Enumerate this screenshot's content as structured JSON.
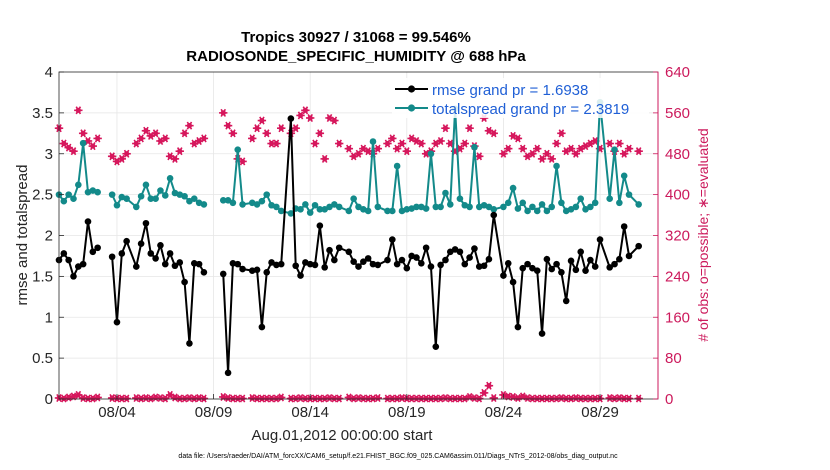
{
  "chart_data": {
    "type": "line",
    "title": "Tropics 30927 / 31068 = 99.546%",
    "subtitle": "RADIOSONDE_SPECIFIC_HUMIDITY @ 688 hPa",
    "xlabel": "Aug.01,2012 00:00:00 start",
    "ylabel": "rmse and totalspread",
    "ylabel_right": "# of obs: o=possible; ∗=evaluated",
    "x_tick_labels": [
      "08/04",
      "08/09",
      "08/14",
      "08/19",
      "08/24",
      "08/29"
    ],
    "x_tick_positions": [
      4,
      9,
      14,
      19,
      24,
      29
    ],
    "xlim": [
      1,
      32
    ],
    "ylim": [
      0,
      4
    ],
    "y_ticks": [
      "0",
      "0.5",
      "1",
      "1.5",
      "2",
      "2.5",
      "3",
      "3.5",
      "4"
    ],
    "ylim_right": [
      0,
      640
    ],
    "y_ticks_right": [
      "0",
      "80",
      "160",
      "240",
      "320",
      "400",
      "480",
      "560",
      "640"
    ],
    "grid": true,
    "legend_position": "top-right",
    "colors": {
      "rmse": "#000000",
      "spread": "#138a8a",
      "obs": "#d6175c",
      "legend_text": "#1f5fd6"
    },
    "series": [
      {
        "name": "rmse",
        "legend": "rmse grand pr = 1.6938",
        "x": [
          1.0,
          1.25,
          1.5,
          1.75,
          2.0,
          2.25,
          2.5,
          2.75,
          3.0,
          3.75,
          4.0,
          4.25,
          4.5,
          5.0,
          5.25,
          5.5,
          5.75,
          6.0,
          6.25,
          6.5,
          6.75,
          7.0,
          7.25,
          7.5,
          7.75,
          8.0,
          8.25,
          8.5,
          9.5,
          9.75,
          10.0,
          10.25,
          10.5,
          11.0,
          11.25,
          11.5,
          11.75,
          12.0,
          12.25,
          12.5,
          13.0,
          13.25,
          13.5,
          13.75,
          14.0,
          14.25,
          14.5,
          14.75,
          15.0,
          15.25,
          15.5,
          16.0,
          16.25,
          16.5,
          16.75,
          17.0,
          17.25,
          17.5,
          18.0,
          18.25,
          18.5,
          18.75,
          19.0,
          19.25,
          19.5,
          19.75,
          20.0,
          20.25,
          20.5,
          20.75,
          21.0,
          21.25,
          21.5,
          21.75,
          22.0,
          22.25,
          22.5,
          22.75,
          23.0,
          23.25,
          23.5,
          24.0,
          24.25,
          24.5,
          24.75,
          25.0,
          25.25,
          25.5,
          25.75,
          26.0,
          26.25,
          26.5,
          26.75,
          27.0,
          27.25,
          27.5,
          27.75,
          28.0,
          28.25,
          28.5,
          28.75,
          29.0,
          29.5,
          29.75,
          30.0,
          30.25,
          30.5,
          31.0
        ],
        "values": [
          1.7,
          1.78,
          1.7,
          1.5,
          1.62,
          1.65,
          2.17,
          1.8,
          1.85,
          1.74,
          0.94,
          1.78,
          1.93,
          1.62,
          1.9,
          2.15,
          1.78,
          1.72,
          1.88,
          1.65,
          1.78,
          1.63,
          1.67,
          1.43,
          0.68,
          1.66,
          1.65,
          1.55,
          1.53,
          0.32,
          1.66,
          1.65,
          1.59,
          1.57,
          1.58,
          0.88,
          1.55,
          1.67,
          1.64,
          1.65,
          3.43,
          1.63,
          1.51,
          1.67,
          1.65,
          1.64,
          2.12,
          1.61,
          1.82,
          1.7,
          1.85,
          1.8,
          1.68,
          1.62,
          1.68,
          1.72,
          1.65,
          1.64,
          1.7,
          1.95,
          1.65,
          1.7,
          1.6,
          1.75,
          1.73,
          1.66,
          1.85,
          1.62,
          0.64,
          1.64,
          1.7,
          1.8,
          1.83,
          1.8,
          1.65,
          1.73,
          1.84,
          1.62,
          1.63,
          1.71,
          2.25,
          1.51,
          1.66,
          1.43,
          0.88,
          1.6,
          1.65,
          1.6,
          1.57,
          0.8,
          1.71,
          1.59,
          1.65,
          1.55,
          1.2,
          1.69,
          1.58,
          1.8,
          1.57,
          1.7,
          1.62,
          1.95,
          1.61,
          1.65,
          1.71,
          2.11,
          1.75,
          1.87
        ]
      },
      {
        "name": "totalspread",
        "legend": "totalspread grand pr = 2.3819",
        "x": [
          1.0,
          1.25,
          1.5,
          1.75,
          2.0,
          2.25,
          2.5,
          2.75,
          3.0,
          3.75,
          4.0,
          4.25,
          4.5,
          5.0,
          5.25,
          5.5,
          5.75,
          6.0,
          6.25,
          6.5,
          6.75,
          7.0,
          7.25,
          7.5,
          7.75,
          8.0,
          8.25,
          8.5,
          9.5,
          9.75,
          10.0,
          10.25,
          10.5,
          11.0,
          11.25,
          11.5,
          11.75,
          12.0,
          12.25,
          12.5,
          13.0,
          13.25,
          13.5,
          13.75,
          14.0,
          14.25,
          14.5,
          14.75,
          15.0,
          15.25,
          15.5,
          16.0,
          16.25,
          16.5,
          16.75,
          17.0,
          17.25,
          17.5,
          18.0,
          18.25,
          18.5,
          18.75,
          19.0,
          19.25,
          19.5,
          19.75,
          20.0,
          20.25,
          20.5,
          20.75,
          21.0,
          21.25,
          21.5,
          21.75,
          22.0,
          22.25,
          22.5,
          22.75,
          23.0,
          23.25,
          23.5,
          24.0,
          24.25,
          24.5,
          24.75,
          25.0,
          25.25,
          25.5,
          25.75,
          26.0,
          26.25,
          26.5,
          26.75,
          27.0,
          27.25,
          27.5,
          27.75,
          28.0,
          28.25,
          28.5,
          28.75,
          29.0,
          29.5,
          29.75,
          30.0,
          30.25,
          30.5,
          31.0
        ],
        "values": [
          2.5,
          2.42,
          2.5,
          2.45,
          2.62,
          3.13,
          2.53,
          2.55,
          2.53,
          2.5,
          2.37,
          2.47,
          2.45,
          2.35,
          2.48,
          2.62,
          2.45,
          2.45,
          2.55,
          2.49,
          2.7,
          2.52,
          2.5,
          2.48,
          2.42,
          2.45,
          2.4,
          2.38,
          2.43,
          2.43,
          2.4,
          3.05,
          2.38,
          2.4,
          2.38,
          2.42,
          2.5,
          2.37,
          2.35,
          2.3,
          2.27,
          2.33,
          2.32,
          2.38,
          2.28,
          2.37,
          2.32,
          2.32,
          2.35,
          2.38,
          2.35,
          2.3,
          2.45,
          2.35,
          2.32,
          2.3,
          3.15,
          2.35,
          2.3,
          2.3,
          2.85,
          2.3,
          2.32,
          2.33,
          2.35,
          2.35,
          2.33,
          3.0,
          2.35,
          2.35,
          2.52,
          2.38,
          3.55,
          2.45,
          2.37,
          2.35,
          3.08,
          2.35,
          2.37,
          2.35,
          2.32,
          2.35,
          2.4,
          2.58,
          2.33,
          2.4,
          2.3,
          2.35,
          2.3,
          2.38,
          2.3,
          2.35,
          2.85,
          2.4,
          2.3,
          2.32,
          2.35,
          2.45,
          2.32,
          2.35,
          2.4,
          3.63,
          2.45,
          3.05,
          2.4,
          2.73,
          2.5,
          2.38
        ]
      },
      {
        "name": "obs_evaluated",
        "axis": "right",
        "x": [
          1.0,
          1.25,
          1.5,
          1.75,
          2.0,
          2.25,
          2.5,
          2.75,
          3.0,
          3.75,
          4.0,
          4.25,
          4.5,
          5.0,
          5.25,
          5.5,
          5.75,
          6.0,
          6.25,
          6.5,
          6.75,
          7.0,
          7.25,
          7.5,
          7.75,
          8.0,
          8.25,
          8.5,
          9.5,
          9.75,
          10.0,
          10.25,
          10.5,
          11.0,
          11.25,
          11.5,
          11.75,
          12.0,
          12.25,
          12.5,
          13.0,
          13.25,
          13.5,
          13.75,
          14.0,
          14.25,
          14.5,
          14.75,
          15.0,
          15.25,
          15.5,
          16.0,
          16.25,
          16.5,
          16.75,
          17.0,
          17.25,
          17.5,
          18.0,
          18.25,
          18.5,
          18.75,
          19.0,
          19.25,
          19.5,
          19.75,
          20.0,
          20.25,
          20.5,
          20.75,
          21.0,
          21.25,
          21.5,
          21.75,
          22.0,
          22.25,
          22.5,
          22.75,
          23.0,
          23.25,
          23.5,
          24.0,
          24.25,
          24.5,
          24.75,
          25.0,
          25.25,
          25.5,
          25.75,
          26.0,
          26.25,
          26.5,
          26.75,
          27.0,
          27.25,
          27.5,
          27.75,
          28.0,
          28.25,
          28.5,
          28.75,
          29.0,
          29.5,
          29.75,
          30.0,
          30.25,
          30.5,
          31.0
        ],
        "values": [
          530,
          500,
          492,
          485,
          565,
          520,
          505,
          495,
          510,
          475,
          465,
          470,
          480,
          500,
          510,
          525,
          515,
          520,
          505,
          510,
          475,
          470,
          485,
          520,
          535,
          500,
          505,
          510,
          560,
          535,
          520,
          470,
          465,
          510,
          530,
          545,
          520,
          500,
          500,
          530,
          520,
          530,
          555,
          565,
          550,
          500,
          520,
          470,
          550,
          545,
          500,
          490,
          475,
          480,
          490,
          485,
          480,
          490,
          500,
          510,
          490,
          500,
          485,
          510,
          505,
          500,
          480,
          485,
          500,
          505,
          530,
          500,
          485,
          490,
          500,
          530,
          495,
          475,
          550,
          525,
          520,
          480,
          490,
          515,
          510,
          490,
          475,
          480,
          490,
          470,
          480,
          470,
          500,
          520,
          485,
          490,
          480,
          490,
          495,
          500,
          505,
          490,
          500,
          485,
          500,
          480,
          490,
          485
        ]
      },
      {
        "name": "obs_possible",
        "axis": "right",
        "x": [
          1.0,
          1.25,
          1.5,
          1.75,
          2.0,
          2.25,
          2.5,
          2.75,
          3.0,
          3.75,
          4.0,
          4.25,
          4.5,
          5.0,
          5.25,
          5.5,
          5.75,
          6.0,
          6.25,
          6.5,
          6.75,
          7.0,
          7.25,
          7.5,
          7.75,
          8.0,
          8.25,
          8.5,
          9.5,
          9.75,
          10.0,
          10.25,
          10.5,
          11.0,
          11.25,
          11.5,
          11.75,
          12.0,
          12.25,
          12.5,
          13.0,
          13.25,
          13.5,
          13.75,
          14.0,
          14.25,
          14.5,
          14.75,
          15.0,
          15.25,
          15.5,
          16.0,
          16.25,
          16.5,
          16.75,
          17.0,
          17.25,
          17.5,
          18.0,
          18.25,
          18.5,
          18.75,
          19.0,
          19.25,
          19.5,
          19.75,
          20.0,
          20.25,
          20.5,
          20.75,
          21.0,
          21.25,
          21.5,
          21.75,
          22.0,
          22.25,
          22.5,
          22.75,
          23.0,
          23.25,
          23.5,
          24.0,
          24.25,
          24.5,
          24.75,
          25.0,
          25.25,
          25.5,
          25.75,
          26.0,
          26.25,
          26.5,
          26.75,
          27.0,
          27.25,
          27.5,
          27.75,
          28.0,
          28.25,
          28.5,
          28.75,
          29.0,
          29.5,
          29.75,
          30.0,
          30.25,
          30.5,
          31.0
        ],
        "values": [
          2,
          1,
          3,
          5,
          8,
          2,
          1,
          1,
          3,
          2,
          1,
          1,
          1,
          2,
          1,
          2,
          1,
          3,
          2,
          1,
          8,
          3,
          1,
          1,
          2,
          1,
          2,
          1,
          4,
          2,
          1,
          1,
          1,
          2,
          1,
          1,
          1,
          1,
          1,
          3,
          1,
          1,
          2,
          1,
          1,
          1,
          1,
          1,
          2,
          1,
          1,
          3,
          1,
          2,
          1,
          1,
          1,
          2,
          1,
          1,
          1,
          2,
          1,
          1,
          1,
          1,
          1,
          1,
          1,
          1,
          2,
          1,
          1,
          1,
          1,
          4,
          2,
          1,
          12,
          26,
          2,
          8,
          5,
          4,
          2,
          5,
          2,
          1,
          1,
          1,
          1,
          1,
          1,
          2,
          1,
          1,
          2,
          1,
          1,
          1,
          1,
          1,
          2,
          1,
          2,
          1,
          1,
          1
        ]
      }
    ]
  },
  "footer": "data file: /Users/raeder/DAI/ATM_forcXX/CAM6_setup/f.e21.FHIST_BGC.f09_025.CAM6assim.011/Diags_NTrS_2012-08/obs_diag_output.nc"
}
